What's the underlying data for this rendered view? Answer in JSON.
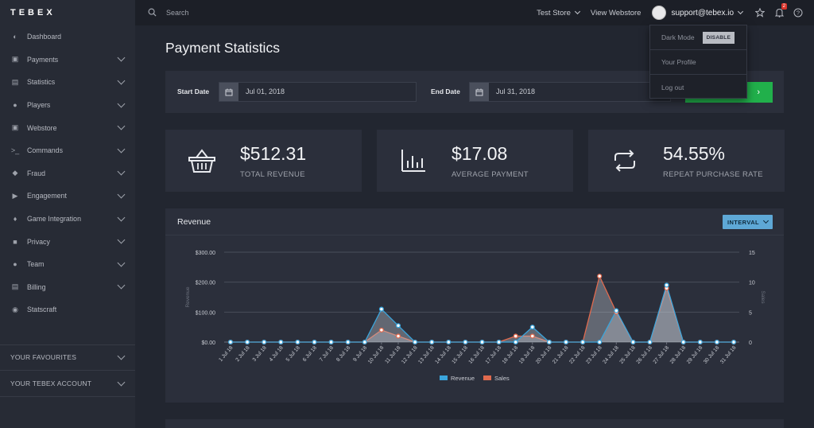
{
  "app": {
    "logo": "TEBEX"
  },
  "sidebar": {
    "items": [
      {
        "label": "Dashboard",
        "icon": "dashboard-icon",
        "has_children": false
      },
      {
        "label": "Payments",
        "icon": "payments-icon",
        "has_children": true
      },
      {
        "label": "Statistics",
        "icon": "statistics-icon",
        "has_children": true
      },
      {
        "label": "Players",
        "icon": "players-icon",
        "has_children": true
      },
      {
        "label": "Webstore",
        "icon": "webstore-icon",
        "has_children": true
      },
      {
        "label": "Commands",
        "icon": "commands-icon",
        "has_children": true
      },
      {
        "label": "Fraud",
        "icon": "fraud-icon",
        "has_children": true
      },
      {
        "label": "Engagement",
        "icon": "engagement-icon",
        "has_children": true
      },
      {
        "label": "Game Integration",
        "icon": "game-integration-icon",
        "has_children": true
      },
      {
        "label": "Privacy",
        "icon": "privacy-icon",
        "has_children": true
      },
      {
        "label": "Team",
        "icon": "team-icon",
        "has_children": true
      },
      {
        "label": "Billing",
        "icon": "billing-icon",
        "has_children": true
      },
      {
        "label": "Statscraft",
        "icon": "statscraft-icon",
        "has_children": false
      }
    ],
    "favourites": "YOUR FAVOURITES",
    "account": "YOUR TEBEX ACCOUNT"
  },
  "topbar": {
    "search_placeholder": "Search",
    "store": "Test Store",
    "view_webstore": "View Webstore",
    "user_email": "support@tebex.io",
    "notification_count": "2"
  },
  "dropdown": {
    "dark_mode_label": "Dark Mode",
    "dark_mode_toggle": "DISABLE",
    "profile": "Your Profile",
    "logout": "Log out"
  },
  "page": {
    "title": "Payment Statistics",
    "start_date_label": "Start Date",
    "start_date": "Jul 01, 2018",
    "end_date_label": "End Date",
    "end_date": "Jul 31, 2018"
  },
  "stats": [
    {
      "value": "$512.31",
      "label": "TOTAL REVENUE",
      "icon": "basket-icon"
    },
    {
      "value": "$17.08",
      "label": "AVERAGE PAYMENT",
      "icon": "bar-chart-icon"
    },
    {
      "value": "54.55%",
      "label": "REPEAT PURCHASE RATE",
      "icon": "repeat-icon"
    }
  ],
  "revenue_panel": {
    "title": "Revenue",
    "interval_label": "INTERVAL"
  },
  "colors": {
    "revenue": "#3aa5dc",
    "sales": "#e06a4e",
    "accent_green": "#21b04b"
  },
  "chart_data": {
    "type": "area",
    "categories": [
      "1 Jul 18",
      "2 Jul 18",
      "3 Jul 18",
      "4 Jul 18",
      "5 Jul 18",
      "6 Jul 18",
      "7 Jul 18",
      "8 Jul 18",
      "9 Jul 18",
      "10 Jul 18",
      "11 Jul 18",
      "12 Jul 18",
      "13 Jul 18",
      "14 Jul 18",
      "15 Jul 18",
      "16 Jul 18",
      "17 Jul 18",
      "18 Jul 18",
      "19 Jul 18",
      "20 Jul 18",
      "21 Jul 18",
      "22 Jul 18",
      "23 Jul 18",
      "24 Jul 18",
      "25 Jul 18",
      "26 Jul 18",
      "27 Jul 18",
      "28 Jul 18",
      "29 Jul 18",
      "30 Jul 18",
      "31 Jul 18"
    ],
    "series": [
      {
        "name": "Revenue",
        "axis": "left",
        "values": [
          0,
          0,
          0,
          0,
          0,
          0,
          0,
          0,
          0,
          110,
          55,
          0,
          0,
          0,
          0,
          0,
          0,
          0,
          50,
          0,
          0,
          0,
          0,
          105,
          0,
          0,
          190,
          0,
          0,
          0,
          0
        ]
      },
      {
        "name": "Sales",
        "axis": "right",
        "values": [
          0,
          0,
          0,
          0,
          0,
          0,
          0,
          0,
          0,
          2,
          1,
          0,
          0,
          0,
          0,
          0,
          0,
          1,
          1,
          0,
          0,
          0,
          11,
          5,
          0,
          0,
          9,
          0,
          0,
          0,
          0
        ]
      }
    ],
    "ylabel_left": "Revenue",
    "ylabel_right": "Sales",
    "ylim_left": [
      0,
      300
    ],
    "ylim_right": [
      0,
      15
    ],
    "yticks_left": [
      "$0.00",
      "$100.00",
      "$200.00",
      "$300.00"
    ],
    "yticks_right": [
      "0",
      "5",
      "10",
      "15"
    ],
    "legend": "bottom"
  }
}
